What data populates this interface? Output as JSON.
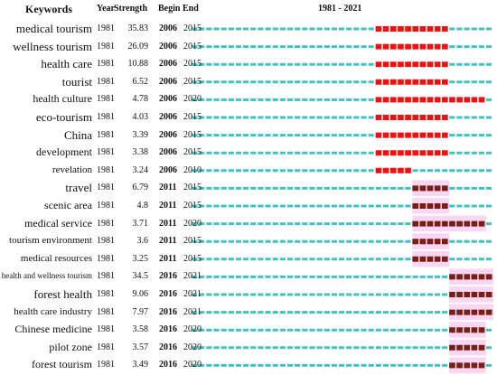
{
  "headers": {
    "keywords": "Keywords",
    "year": "Year",
    "strength": "Strength",
    "begin": "Begin",
    "end": "End",
    "range": "1981 - 2021"
  },
  "chart_data": {
    "type": "burst-timeline",
    "title": "",
    "range": [
      1981,
      2021
    ],
    "colors": {
      "baseline": "#44c1c1",
      "burst": "#ee1111",
      "burst_alt": "#7a1e14",
      "highlight": "#f9d6f2",
      "shade": "#e6f7f7"
    },
    "rows": [
      {
        "keyword": "medical tourism",
        "year": "1981",
        "strength": "35.83",
        "begin": "2006",
        "end": "2015",
        "font_size": 13,
        "burst_style": "bright"
      },
      {
        "keyword": "wellness tourism",
        "year": "1981",
        "strength": "26.09",
        "begin": "2006",
        "end": "2015",
        "font_size": 13,
        "burst_style": "bright"
      },
      {
        "keyword": "health care",
        "year": "1981",
        "strength": "10.88",
        "begin": "2006",
        "end": "2015",
        "font_size": 13,
        "burst_style": "bright"
      },
      {
        "keyword": "tourist",
        "year": "1981",
        "strength": "6.52",
        "begin": "2006",
        "end": "2015",
        "font_size": 13,
        "burst_style": "bright"
      },
      {
        "keyword": "health culture",
        "year": "1981",
        "strength": "4.78",
        "begin": "2006",
        "end": "2020",
        "font_size": 12,
        "burst_style": "bright"
      },
      {
        "keyword": "eco-tourism",
        "year": "1981",
        "strength": "4.03",
        "begin": "2006",
        "end": "2015",
        "font_size": 13,
        "burst_style": "bright"
      },
      {
        "keyword": "China",
        "year": "1981",
        "strength": "3.39",
        "begin": "2006",
        "end": "2015",
        "font_size": 13,
        "burst_style": "bright"
      },
      {
        "keyword": "development",
        "year": "1981",
        "strength": "3.38",
        "begin": "2006",
        "end": "2015",
        "font_size": 12,
        "burst_style": "bright"
      },
      {
        "keyword": "revelation",
        "year": "1981",
        "strength": "3.24",
        "begin": "2006",
        "end": "2010",
        "font_size": 11,
        "burst_style": "bright"
      },
      {
        "keyword": "travel",
        "year": "1981",
        "strength": "6.79",
        "begin": "2011",
        "end": "2015",
        "font_size": 13,
        "burst_style": "dark"
      },
      {
        "keyword": "scenic area",
        "year": "1981",
        "strength": "4.8",
        "begin": "2011",
        "end": "2015",
        "font_size": 12,
        "burst_style": "dark"
      },
      {
        "keyword": "medical service",
        "year": "1981",
        "strength": "3.71",
        "begin": "2011",
        "end": "2020",
        "font_size": 12,
        "burst_style": "dark"
      },
      {
        "keyword": "tourism environment",
        "year": "1981",
        "strength": "3.6",
        "begin": "2011",
        "end": "2015",
        "font_size": 11,
        "burst_style": "dark"
      },
      {
        "keyword": "medical resources",
        "year": "1981",
        "strength": "3.25",
        "begin": "2011",
        "end": "2015",
        "font_size": 11,
        "burst_style": "dark"
      },
      {
        "keyword": "health and wellness tourism",
        "year": "1981",
        "strength": "34.5",
        "begin": "2016",
        "end": "2021",
        "font_size": 9,
        "burst_style": "dark"
      },
      {
        "keyword": "forest health",
        "year": "1981",
        "strength": "9.06",
        "begin": "2016",
        "end": "2021",
        "font_size": 13,
        "burst_style": "dark"
      },
      {
        "keyword": "health care industry",
        "year": "1981",
        "strength": "7.97",
        "begin": "2016",
        "end": "2021",
        "font_size": 11,
        "burst_style": "dark"
      },
      {
        "keyword": "Chinese medicine",
        "year": "1981",
        "strength": "3.58",
        "begin": "2016",
        "end": "2020",
        "font_size": 12,
        "burst_style": "dark"
      },
      {
        "keyword": "pilot zone",
        "year": "1981",
        "strength": "3.57",
        "begin": "2016",
        "end": "2020",
        "font_size": 12,
        "burst_style": "dark"
      },
      {
        "keyword": "forest tourism",
        "year": "1981",
        "strength": "3.49",
        "begin": "2016",
        "end": "2020",
        "font_size": 12,
        "burst_style": "dark"
      }
    ]
  }
}
